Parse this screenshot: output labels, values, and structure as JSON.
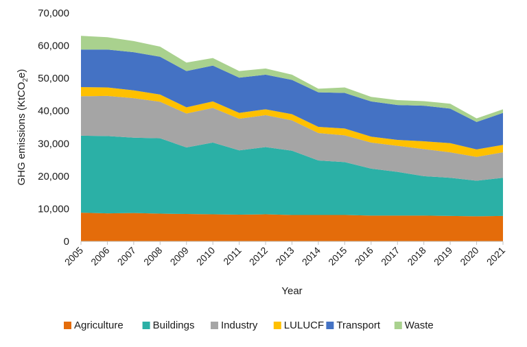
{
  "chart_data": {
    "type": "area",
    "stacked": true,
    "title": "",
    "xlabel": "Year",
    "ylabel": "GHG emissions (KtCO",
    "ylabel_sub": "2",
    "ylabel_end": "e)",
    "x": [
      "2005",
      "2006",
      "2007",
      "2008",
      "2009",
      "2010",
      "2011",
      "2012",
      "2013",
      "2014",
      "2015",
      "2016",
      "2017",
      "2018",
      "2019",
      "2020",
      "2021"
    ],
    "ylim": [
      0,
      70000
    ],
    "yticks": [
      0,
      10000,
      20000,
      30000,
      40000,
      50000,
      60000,
      70000
    ],
    "ytick_labels": [
      "0",
      "10,000",
      "20,000",
      "30,000",
      "40,000",
      "50,000",
      "60,000",
      "70,000"
    ],
    "grid": false,
    "legend_position": "bottom",
    "series": [
      {
        "name": "Agriculture",
        "color": "#E46C0A",
        "values": [
          8800,
          8600,
          8700,
          8500,
          8400,
          8300,
          8200,
          8300,
          8100,
          8100,
          8100,
          7900,
          7900,
          7900,
          7800,
          7700,
          7800
        ]
      },
      {
        "name": "Buildings",
        "color": "#2BB0A6",
        "values": [
          23600,
          23700,
          23100,
          23100,
          20400,
          22000,
          19700,
          20600,
          19700,
          16700,
          16200,
          14400,
          13400,
          12100,
          11700,
          10900,
          11700
        ]
      },
      {
        "name": "Industry",
        "color": "#A5A5A5",
        "values": [
          12100,
          12300,
          12100,
          11200,
          10400,
          10600,
          9700,
          9800,
          9300,
          8400,
          8200,
          8000,
          8000,
          8300,
          7800,
          7300,
          7800
        ]
      },
      {
        "name": "LULUCF",
        "color": "#FFC000",
        "values": [
          2800,
          2600,
          2400,
          2200,
          1900,
          2000,
          1800,
          1800,
          1900,
          1900,
          2100,
          1800,
          1800,
          2400,
          2800,
          2300,
          2300
        ]
      },
      {
        "name": "Transport",
        "color": "#4472C4",
        "values": [
          11500,
          11600,
          11700,
          11600,
          11100,
          11000,
          10800,
          10600,
          10500,
          10600,
          10900,
          10800,
          10700,
          10900,
          10600,
          8400,
          9800
        ]
      },
      {
        "name": "Waste",
        "color": "#A9D18E",
        "values": [
          4200,
          3800,
          3400,
          3100,
          2600,
          2300,
          2000,
          1900,
          1600,
          1100,
          1700,
          1400,
          1500,
          1400,
          1500,
          1100,
          1100
        ]
      }
    ]
  }
}
